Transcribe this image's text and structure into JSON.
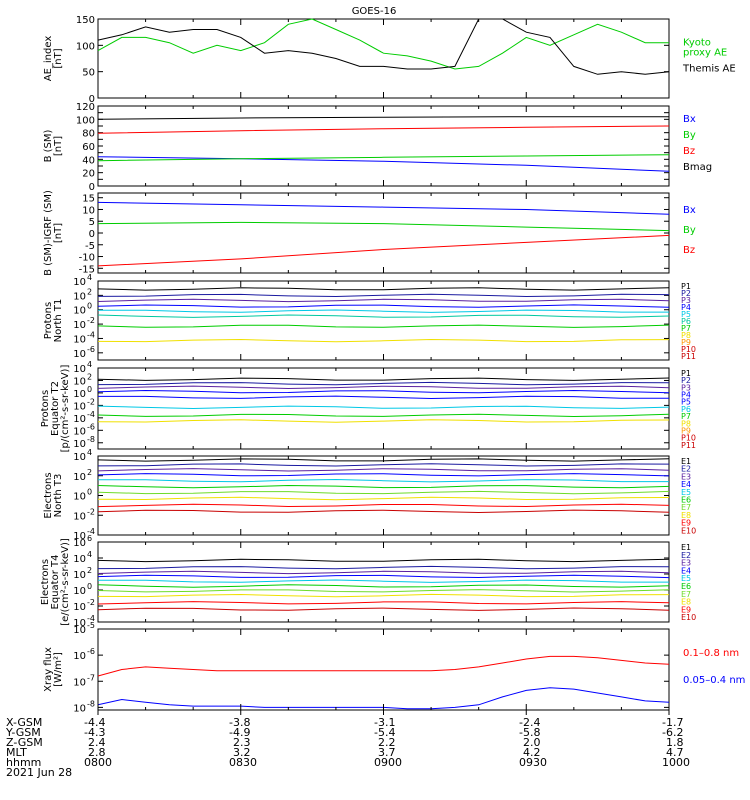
{
  "title": "GOES-16",
  "date_label": "2021 Jun 28",
  "colors": {
    "black": "#000000",
    "green": "#00cc00",
    "red": "#ff0000",
    "blue": "#0000ff",
    "navy": "#1a1aa0",
    "purple": "#5a20a0",
    "cyan": "#00c8e6",
    "teal": "#00c8a0",
    "lime": "#6edc2a",
    "yellow": "#f0e000",
    "orange": "#ff9600",
    "darkred": "#c80000",
    "crimson": "#d00000"
  },
  "time_axis": {
    "start_hhmm": "0800",
    "end_hhmm": "1000"
  },
  "orbit": {
    "row_labels": [
      "X-GSM",
      "Y-GSM",
      "Z-GSM",
      "MLT",
      "hhmm"
    ],
    "columns": [
      {
        "x": "-4.4",
        "y": "-4.3",
        "z": "2.4",
        "mlt": "2.8",
        "hhmm": "0800"
      },
      {
        "x": "-3.8",
        "y": "-4.9",
        "z": "2.3",
        "mlt": "3.2",
        "hhmm": "0830"
      },
      {
        "x": "-3.1",
        "y": "-5.4",
        "z": "2.2",
        "mlt": "3.7",
        "hhmm": "0900"
      },
      {
        "x": "-2.4",
        "y": "-5.8",
        "z": "2.0",
        "mlt": "4.2",
        "hhmm": "0930"
      },
      {
        "x": "-1.7",
        "y": "-6.2",
        "z": "1.8",
        "mlt": "4.7",
        "hhmm": "1000"
      }
    ]
  },
  "chart_data": [
    {
      "type": "line",
      "id": "ae",
      "ylabel": [
        "AE_index",
        "[nT]"
      ],
      "ylim": [
        0,
        150
      ],
      "scale": "linear",
      "yticks": [
        0,
        50,
        100,
        150
      ],
      "tick_labels": [
        "0",
        "50",
        "100",
        "150"
      ],
      "x_minutes": [
        0,
        5,
        10,
        15,
        20,
        25,
        30,
        35,
        40,
        45,
        50,
        55,
        60,
        65,
        70,
        75,
        80,
        85,
        90,
        95,
        100,
        105,
        110,
        115,
        120
      ],
      "series": [
        {
          "name": "Kyoto proxy AE",
          "legend": [
            "Kyoto",
            "proxy AE"
          ],
          "color": "#00cc00",
          "values": [
            90,
            115,
            115,
            105,
            85,
            100,
            90,
            105,
            140,
            150,
            130,
            110,
            85,
            80,
            70,
            55,
            60,
            85,
            115,
            100,
            120,
            140,
            125,
            105,
            105
          ]
        },
        {
          "name": "Themis AE",
          "legend": [
            "Themis AE"
          ],
          "color": "#000000",
          "values": [
            110,
            120,
            135,
            125,
            130,
            130,
            115,
            85,
            90,
            85,
            75,
            60,
            60,
            55,
            55,
            60,
            150,
            150,
            125,
            115,
            60,
            45,
            50,
            45,
            50
          ]
        }
      ]
    },
    {
      "type": "line",
      "id": "bsm",
      "ylabel": [
        "B (SM)",
        "[nT]"
      ],
      "ylim": [
        0,
        120
      ],
      "scale": "linear",
      "yticks": [
        0,
        10,
        20,
        30,
        40,
        50,
        60,
        70,
        80,
        90,
        100,
        110,
        120
      ],
      "tick_labels": [
        "0",
        "",
        "20",
        "",
        "40",
        "",
        "60",
        "",
        "80",
        "",
        "100",
        "",
        "120"
      ],
      "x_minutes": [
        0,
        30,
        60,
        90,
        120
      ],
      "series": [
        {
          "name": "Bx",
          "legend": [
            "Bx"
          ],
          "color": "#0000ff",
          "values": [
            44,
            41,
            37,
            31,
            22
          ]
        },
        {
          "name": "By",
          "legend": [
            "By"
          ],
          "color": "#00cc00",
          "values": [
            38,
            41,
            43,
            45,
            47
          ]
        },
        {
          "name": "Bz",
          "legend": [
            "Bz"
          ],
          "color": "#ff0000",
          "values": [
            79,
            83,
            86,
            88,
            90
          ]
        },
        {
          "name": "Bmag",
          "legend": [
            "Bmag"
          ],
          "color": "#000000",
          "values": [
            100,
            102,
            103,
            104,
            104
          ]
        }
      ]
    },
    {
      "type": "line",
      "id": "bigrf",
      "ylabel": [
        "B (SM)-IGRF (SM)",
        "[nT]"
      ],
      "ylim": [
        -17,
        17
      ],
      "scale": "linear",
      "yticks": [
        -15,
        -10,
        -5,
        0,
        5,
        10,
        15
      ],
      "tick_labels": [
        "-15",
        "-10",
        "-5",
        "0",
        "5",
        "10",
        "15"
      ],
      "x_minutes": [
        0,
        30,
        60,
        90,
        120
      ],
      "series": [
        {
          "name": "Bx",
          "legend": [
            "Bx"
          ],
          "color": "#0000ff",
          "values": [
            13,
            12,
            11,
            10,
            8
          ]
        },
        {
          "name": "By",
          "legend": [
            "By"
          ],
          "color": "#00cc00",
          "values": [
            4,
            4.5,
            4,
            2.5,
            1
          ]
        },
        {
          "name": "Bz",
          "legend": [
            "Bz"
          ],
          "color": "#ff0000",
          "values": [
            -14,
            -11,
            -7,
            -4,
            -1
          ]
        }
      ]
    },
    {
      "type": "line",
      "id": "protons_t1",
      "ylabel": [
        "Protons",
        "North T1"
      ],
      "ylim": [
        -7,
        4
      ],
      "scale": "log",
      "tick_exponents": [
        -6,
        -4,
        -2,
        0,
        2,
        4
      ],
      "channels": [
        {
          "name": "P1",
          "color": "#000000",
          "log_value": 2.9
        },
        {
          "name": "P2",
          "color": "#1a1aa0",
          "log_value": 2.0
        },
        {
          "name": "P3",
          "color": "#5a20a0",
          "log_value": 1.3
        },
        {
          "name": "P4",
          "color": "#0000ff",
          "log_value": 0.5
        },
        {
          "name": "P5",
          "color": "#00c8e6",
          "log_value": -0.2
        },
        {
          "name": "P6",
          "color": "#00c8a0",
          "log_value": -0.9
        },
        {
          "name": "P7",
          "color": "#00cc00",
          "log_value": -2.3
        },
        {
          "name": "P8",
          "color": "#f0e000",
          "log_value": -4.3
        },
        {
          "name": "P9",
          "color": "#ff9600"
        },
        {
          "name": "P10",
          "color": "#d00000"
        },
        {
          "name": "P11",
          "color": "#c80000"
        }
      ]
    },
    {
      "type": "line",
      "id": "protons_t2",
      "ylabel": [
        "Protons",
        "Equator T2",
        "[p/(cm²-s-sr-keV)]"
      ],
      "ylim": [
        -9,
        4
      ],
      "scale": "log",
      "tick_exponents": [
        -8,
        -6,
        -4,
        -2,
        0,
        2,
        4
      ],
      "channels": [
        {
          "name": "P1",
          "color": "#000000",
          "log_value": 2.2
        },
        {
          "name": "P2",
          "color": "#1a1aa0",
          "log_value": 1.5
        },
        {
          "name": "P3",
          "color": "#5a20a0",
          "log_value": 0.9
        },
        {
          "name": "P4",
          "color": "#0000ff",
          "log_value": 0.2
        },
        {
          "name": "P5",
          "color": "#0000ff",
          "log_value": -0.7
        },
        {
          "name": "P6",
          "color": "#00c8e6",
          "log_value": -2.3
        },
        {
          "name": "P7",
          "color": "#00cc00",
          "log_value": -3.6
        },
        {
          "name": "P8",
          "color": "#f0e000",
          "log_value": -4.5
        },
        {
          "name": "P9",
          "color": "#ff9600"
        },
        {
          "name": "P10",
          "color": "#d00000"
        },
        {
          "name": "P11",
          "color": "#c80000"
        }
      ]
    },
    {
      "type": "line",
      "id": "electrons_t3",
      "ylabel": [
        "Electrons",
        "North T3"
      ],
      "ylim": [
        -4,
        4
      ],
      "scale": "log",
      "tick_exponents": [
        -4,
        -2,
        0,
        2,
        4
      ],
      "channels": [
        {
          "name": "E1",
          "color": "#000000",
          "log_value": 3.6
        },
        {
          "name": "E2",
          "color": "#1a1aa0",
          "log_value": 3.1
        },
        {
          "name": "E3",
          "color": "#5a20a0",
          "log_value": 2.6
        },
        {
          "name": "E4",
          "color": "#0000ff",
          "log_value": 2.1
        },
        {
          "name": "E5",
          "color": "#00c8e6",
          "log_value": 1.5
        },
        {
          "name": "E6",
          "color": "#00cc00",
          "log_value": 0.9
        },
        {
          "name": "E7",
          "color": "#6edc2a",
          "log_value": 0.3
        },
        {
          "name": "E8",
          "color": "#f0e000",
          "log_value": -0.3
        },
        {
          "name": "E9",
          "color": "#ff0000",
          "log_value": -1.0
        },
        {
          "name": "E10",
          "color": "#c80000",
          "log_value": -1.6
        }
      ]
    },
    {
      "type": "line",
      "id": "electrons_t4",
      "ylabel": [
        "Electrons",
        "Equator T4",
        "[e/(cm²-s-sr-keV)]"
      ],
      "ylim": [
        -4,
        6
      ],
      "scale": "log",
      "tick_exponents": [
        -4,
        -2,
        0,
        2,
        4,
        6
      ],
      "channels": [
        {
          "name": "E1",
          "color": "#000000",
          "log_value": 3.7
        },
        {
          "name": "E2",
          "color": "#1a1aa0",
          "log_value": 2.8
        },
        {
          "name": "E3",
          "color": "#5a20a0",
          "log_value": 2.2
        },
        {
          "name": "E4",
          "color": "#0000ff",
          "log_value": 1.7
        },
        {
          "name": "E5",
          "color": "#00c8e6",
          "log_value": 1.1
        },
        {
          "name": "E6",
          "color": "#00cc00",
          "log_value": 0.5
        },
        {
          "name": "E7",
          "color": "#6edc2a",
          "log_value": -0.1
        },
        {
          "name": "E8",
          "color": "#f0e000",
          "log_value": -0.7
        },
        {
          "name": "E9",
          "color": "#ff0000",
          "log_value": -1.6
        },
        {
          "name": "E10",
          "color": "#c80000",
          "log_value": -2.4
        }
      ]
    },
    {
      "type": "line",
      "id": "xray",
      "ylabel": [
        "Xray flux",
        "[W/m²]"
      ],
      "ylim": [
        -8.1,
        -5
      ],
      "scale": "log",
      "tick_exponents": [
        -8,
        -7,
        -6,
        -5
      ],
      "x_minutes": [
        0,
        5,
        10,
        15,
        20,
        25,
        30,
        35,
        40,
        45,
        50,
        55,
        60,
        65,
        70,
        75,
        80,
        85,
        90,
        95,
        100,
        105,
        110,
        115,
        120
      ],
      "series": [
        {
          "name": "0.1-0.8 nm",
          "legend": [
            "0.1–0.8 nm"
          ],
          "color": "#ff0000",
          "log_values": [
            -6.8,
            -6.55,
            -6.45,
            -6.5,
            -6.55,
            -6.6,
            -6.6,
            -6.6,
            -6.6,
            -6.6,
            -6.6,
            -6.6,
            -6.6,
            -6.6,
            -6.6,
            -6.55,
            -6.45,
            -6.3,
            -6.15,
            -6.05,
            -6.05,
            -6.1,
            -6.2,
            -6.3,
            -6.35
          ]
        },
        {
          "name": "0.05-0.4 nm",
          "legend": [
            "0.05–0.4 nm"
          ],
          "color": "#0000ff",
          "log_values": [
            -7.9,
            -7.7,
            -7.8,
            -7.9,
            -7.95,
            -7.95,
            -7.95,
            -8.0,
            -8.0,
            -8.0,
            -8.0,
            -8.0,
            -8.0,
            -8.05,
            -8.05,
            -8.0,
            -7.9,
            -7.6,
            -7.35,
            -7.25,
            -7.3,
            -7.45,
            -7.6,
            -7.75,
            -7.8
          ]
        }
      ]
    }
  ]
}
